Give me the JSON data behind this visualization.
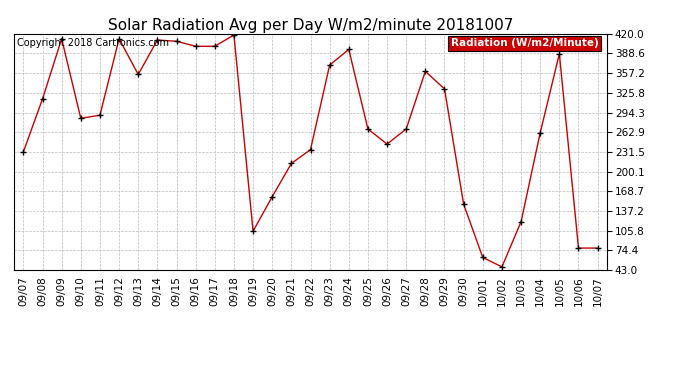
{
  "title": "Solar Radiation Avg per Day W/m2/minute 20181007",
  "copyright_text": "Copyright 2018 Cartronics.com",
  "legend_label": "Radiation (W/m2/Minute)",
  "labels": [
    "09/07",
    "09/08",
    "09/09",
    "09/10",
    "09/11",
    "09/12",
    "09/13",
    "09/14",
    "09/15",
    "09/16",
    "09/17",
    "09/18",
    "09/19",
    "09/20",
    "09/21",
    "09/22",
    "09/23",
    "09/24",
    "09/25",
    "09/26",
    "09/27",
    "09/28",
    "09/29",
    "09/30",
    "10/01",
    "10/02",
    "10/03",
    "10/04",
    "10/05",
    "10/06",
    "10/07"
  ],
  "values": [
    231.5,
    316.0,
    412.0,
    285.0,
    290.0,
    412.0,
    355.0,
    410.0,
    408.0,
    400.0,
    400.0,
    418.0,
    105.0,
    160.0,
    213.0,
    235.0,
    370.0,
    395.0,
    268.0,
    244.0,
    268.0,
    360.0,
    332.0,
    148.0,
    63.0,
    48.0,
    120.0,
    262.0,
    388.0,
    78.0,
    78.0
  ],
  "ylim": [
    43.0,
    420.0
  ],
  "yticks": [
    43.0,
    74.4,
    105.8,
    137.2,
    168.7,
    200.1,
    231.5,
    262.9,
    294.3,
    325.8,
    357.2,
    388.6,
    420.0
  ],
  "line_color": "#cc0000",
  "marker_color": "#000000",
  "bg_color": "#ffffff",
  "grid_color": "#bbbbbb",
  "title_fontsize": 11,
  "axis_fontsize": 7.5,
  "copyright_fontsize": 7,
  "legend_bg": "#cc0000",
  "legend_text_color": "#ffffff"
}
